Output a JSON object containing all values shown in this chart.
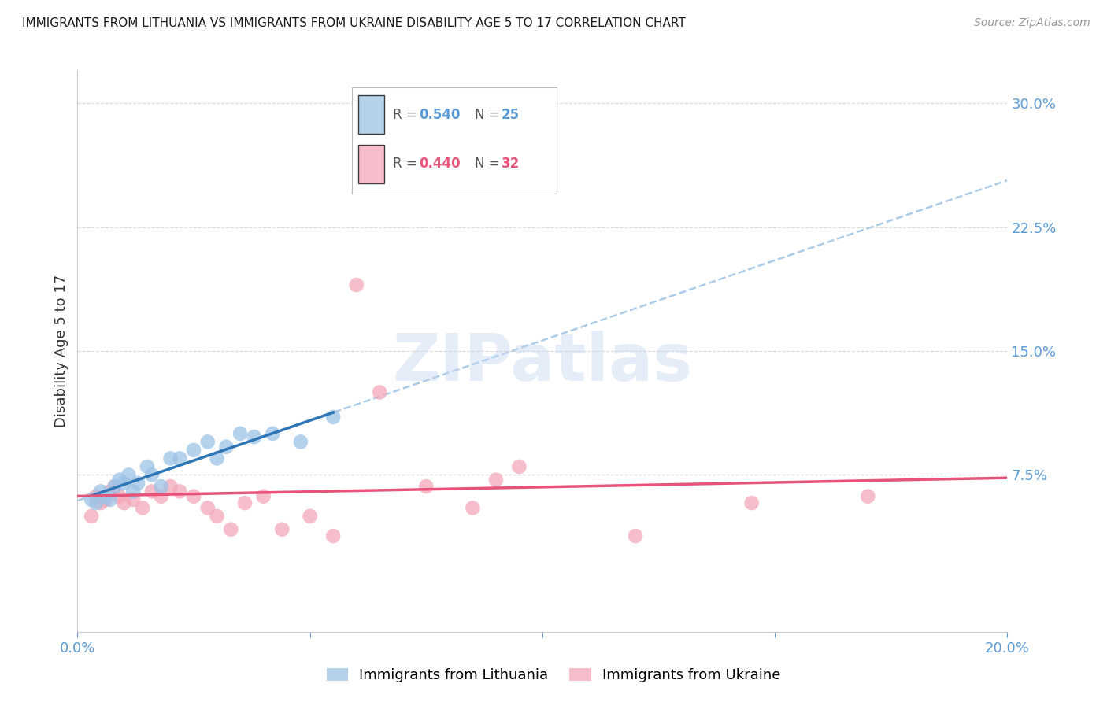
{
  "title": "IMMIGRANTS FROM LITHUANIA VS IMMIGRANTS FROM UKRAINE DISABILITY AGE 5 TO 17 CORRELATION CHART",
  "source": "Source: ZipAtlas.com",
  "tick_color": "#5b9bd5",
  "ylabel": "Disability Age 5 to 17",
  "xlim": [
    0.0,
    0.2
  ],
  "ylim": [
    -0.02,
    0.32
  ],
  "yticks": [
    0.0,
    0.075,
    0.15,
    0.225,
    0.3
  ],
  "ytick_labels": [
    "",
    "7.5%",
    "15.0%",
    "22.5%",
    "30.0%"
  ],
  "xticks": [
    0.0,
    0.05,
    0.1,
    0.15,
    0.2
  ],
  "lithuania_color": "#9dc3e6",
  "ukraine_color": "#f4a7b9",
  "lithuania_line_color": "#2e75b6",
  "ukraine_line_color": "#e8537a",
  "dashed_line_color": "#9dc3e6",
  "legend_label_lithuania": "Immigrants from Lithuania",
  "legend_label_ukraine": "Immigrants from Ukraine",
  "lithuania_x": [
    0.003,
    0.004,
    0.005,
    0.006,
    0.007,
    0.008,
    0.009,
    0.01,
    0.011,
    0.012,
    0.013,
    0.015,
    0.016,
    0.018,
    0.02,
    0.022,
    0.025,
    0.028,
    0.03,
    0.032,
    0.035,
    0.038,
    0.042,
    0.048,
    0.055
  ],
  "lithuania_y": [
    0.06,
    0.058,
    0.065,
    0.062,
    0.06,
    0.068,
    0.072,
    0.07,
    0.075,
    0.065,
    0.07,
    0.08,
    0.075,
    0.068,
    0.085,
    0.085,
    0.09,
    0.095,
    0.085,
    0.092,
    0.1,
    0.098,
    0.1,
    0.095,
    0.11
  ],
  "ukraine_x": [
    0.003,
    0.004,
    0.005,
    0.006,
    0.007,
    0.008,
    0.009,
    0.01,
    0.012,
    0.014,
    0.016,
    0.018,
    0.02,
    0.022,
    0.025,
    0.028,
    0.03,
    0.033,
    0.036,
    0.04,
    0.044,
    0.05,
    0.055,
    0.06,
    0.065,
    0.075,
    0.085,
    0.09,
    0.095,
    0.12,
    0.145,
    0.17
  ],
  "ukraine_y": [
    0.05,
    0.062,
    0.058,
    0.06,
    0.065,
    0.068,
    0.062,
    0.058,
    0.06,
    0.055,
    0.065,
    0.062,
    0.068,
    0.065,
    0.062,
    0.055,
    0.05,
    0.042,
    0.058,
    0.062,
    0.042,
    0.05,
    0.038,
    0.19,
    0.125,
    0.068,
    0.055,
    0.072,
    0.08,
    0.038,
    0.058,
    0.062
  ],
  "watermark_text": "ZIPatlas",
  "background_color": "#ffffff",
  "grid_color": "#d9d9d9"
}
